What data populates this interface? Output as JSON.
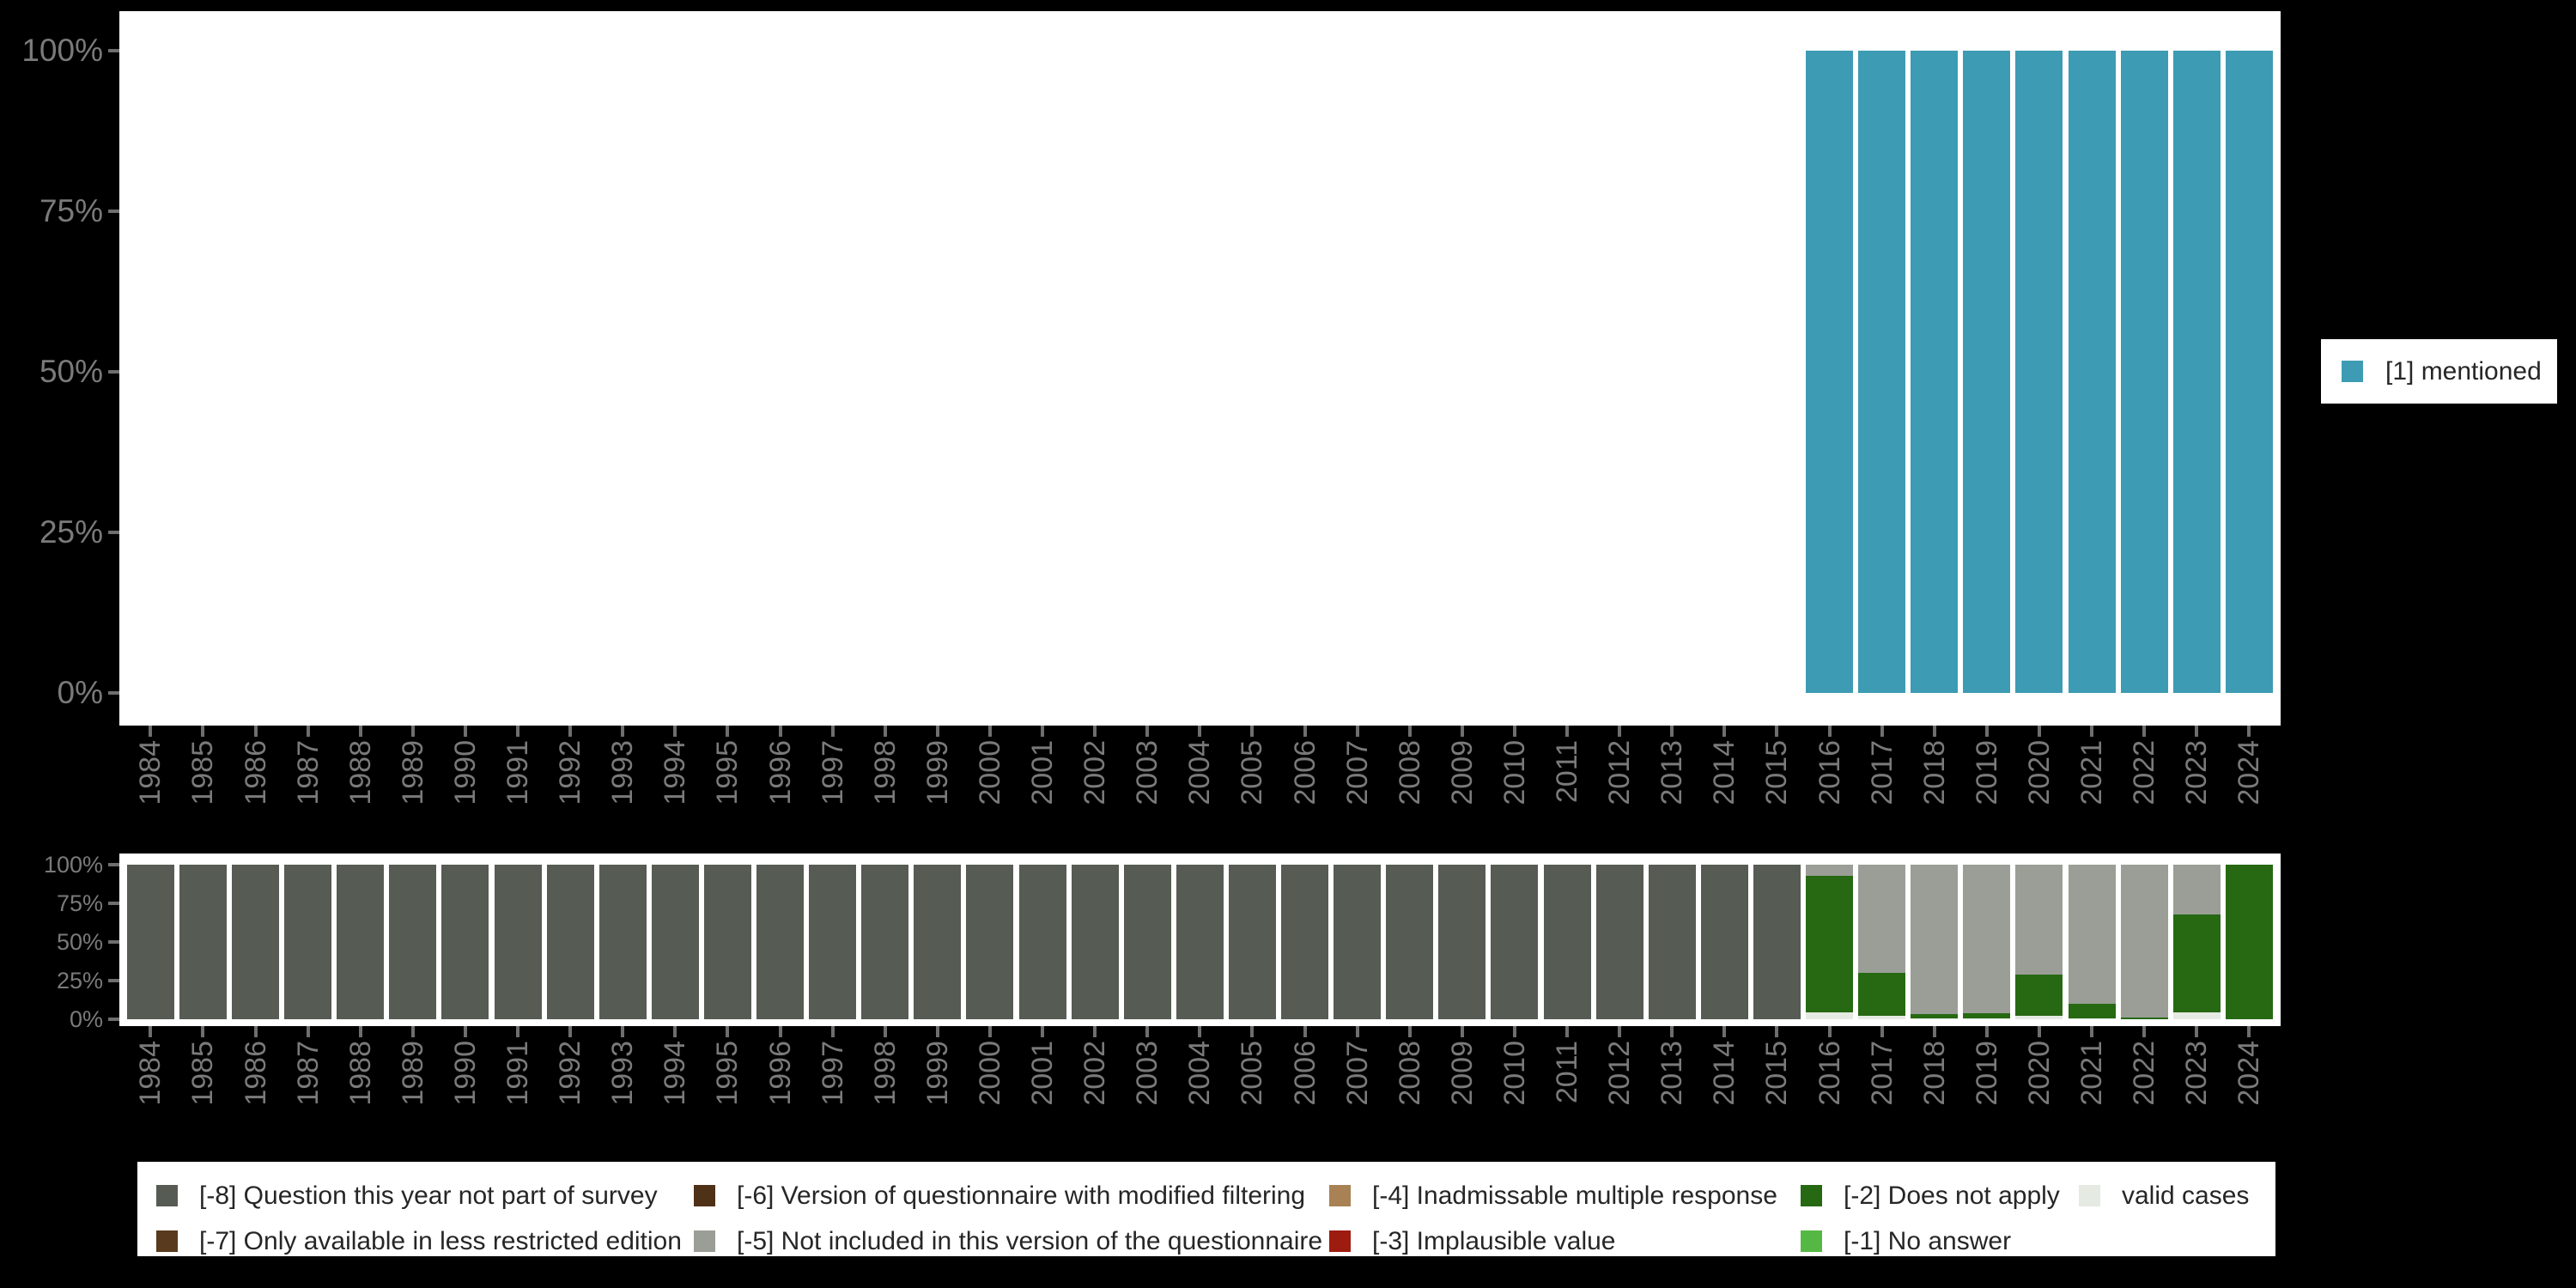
{
  "colors": {
    "background": "#000000",
    "plot_background": "#FFFFFF",
    "axis_text": "#7A7A7A",
    "tick": "#6E6E6E",
    "legend_text": "#262626",
    "mentioned": "#3D9BB3",
    "minus8": "#565B54",
    "minus7": "#5A3A1E",
    "minus6": "#4E3117",
    "minus5": "#9A9E96",
    "minus4": "#A88154",
    "minus3": "#9E1B10",
    "minus2": "#266912",
    "minus1": "#55B845",
    "valid": "#E5EAE3"
  },
  "legend_top": {
    "items": [
      {
        "label": "[1] mentioned",
        "color": "#3D9BB3"
      }
    ]
  },
  "legend_bottom": {
    "rows": [
      [
        {
          "label": "[-8] Question this year not part of survey",
          "color": "#565B54"
        },
        {
          "label": "[-6] Version of questionnaire with modified filtering",
          "color": "#4E3117"
        },
        {
          "label": "[-4] Inadmissable multiple response",
          "color": "#A88154"
        },
        {
          "label": "[-2] Does not apply",
          "color": "#266912"
        },
        {
          "label": "valid cases",
          "color": "#E5EAE3"
        }
      ],
      [
        {
          "label": "[-7] Only available in less restricted edition",
          "color": "#5A3A1E"
        },
        {
          "label": "[-5] Not included in this version of the questionnaire",
          "color": "#9A9E96"
        },
        {
          "label": "[-3] Implausible value",
          "color": "#9E1B10"
        },
        {
          "label": "[-1] No answer",
          "color": "#55B845"
        }
      ]
    ]
  },
  "chart_data": [
    {
      "type": "bar",
      "stacked": true,
      "unit": "percent",
      "title": "",
      "xlabel": "",
      "ylabel": "",
      "ylim": [
        0,
        100
      ],
      "grid": false,
      "legend_position": "right",
      "y_tick_labels": [
        "100%",
        "75%",
        "50%",
        "25%",
        "0%"
      ],
      "categories": [
        "1984",
        "1985",
        "1986",
        "1987",
        "1988",
        "1989",
        "1990",
        "1991",
        "1992",
        "1993",
        "1994",
        "1995",
        "1996",
        "1997",
        "1998",
        "1999",
        "2000",
        "2001",
        "2002",
        "2003",
        "2004",
        "2005",
        "2006",
        "2007",
        "2008",
        "2009",
        "2010",
        "2011",
        "2012",
        "2013",
        "2014",
        "2015",
        "2016",
        "2017",
        "2018",
        "2019",
        "2020",
        "2021",
        "2022",
        "2023",
        "2024"
      ],
      "series": [
        {
          "name": "[1] mentioned",
          "color": "#3D9BB3",
          "values": [
            null,
            null,
            null,
            null,
            null,
            null,
            null,
            null,
            null,
            null,
            null,
            null,
            null,
            null,
            null,
            null,
            null,
            null,
            null,
            null,
            null,
            null,
            null,
            null,
            null,
            null,
            null,
            null,
            null,
            null,
            null,
            null,
            100,
            100,
            100,
            100,
            100,
            100,
            100,
            100,
            100
          ]
        }
      ]
    },
    {
      "type": "bar",
      "stacked": true,
      "unit": "percent",
      "title": "",
      "xlabel": "",
      "ylabel": "",
      "ylim": [
        0,
        100
      ],
      "grid": false,
      "legend_position": "bottom",
      "y_tick_labels": [
        "100%",
        "75%",
        "50%",
        "25%",
        "0%"
      ],
      "categories": [
        "1984",
        "1985",
        "1986",
        "1987",
        "1988",
        "1989",
        "1990",
        "1991",
        "1992",
        "1993",
        "1994",
        "1995",
        "1996",
        "1997",
        "1998",
        "1999",
        "2000",
        "2001",
        "2002",
        "2003",
        "2004",
        "2005",
        "2006",
        "2007",
        "2008",
        "2009",
        "2010",
        "2011",
        "2012",
        "2013",
        "2014",
        "2015",
        "2016",
        "2017",
        "2018",
        "2019",
        "2020",
        "2021",
        "2022",
        "2023",
        "2024"
      ],
      "series": [
        {
          "name": "[-8] Question this year not part of survey",
          "color": "#565B54",
          "values": [
            100,
            100,
            100,
            100,
            100,
            100,
            100,
            100,
            100,
            100,
            100,
            100,
            100,
            100,
            100,
            100,
            100,
            100,
            100,
            100,
            100,
            100,
            100,
            100,
            100,
            100,
            100,
            100,
            100,
            100,
            100,
            100,
            0,
            0,
            0,
            0,
            0,
            0,
            0,
            0,
            0
          ]
        },
        {
          "name": "[-5] Not included in this version of the questionnaire",
          "color": "#9A9E96",
          "values": [
            0,
            0,
            0,
            0,
            0,
            0,
            0,
            0,
            0,
            0,
            0,
            0,
            0,
            0,
            0,
            0,
            0,
            0,
            0,
            0,
            0,
            0,
            0,
            0,
            0,
            0,
            0,
            0,
            0,
            0,
            0,
            0,
            7,
            70,
            96.5,
            96,
            71,
            90,
            99,
            32,
            0
          ]
        },
        {
          "name": "[-2] Does not apply",
          "color": "#266912",
          "values": [
            0,
            0,
            0,
            0,
            0,
            0,
            0,
            0,
            0,
            0,
            0,
            0,
            0,
            0,
            0,
            0,
            0,
            0,
            0,
            0,
            0,
            0,
            0,
            0,
            0,
            0,
            0,
            0,
            0,
            0,
            0,
            0,
            88.5,
            28,
            3,
            3.5,
            27,
            9.5,
            1,
            63.5,
            100
          ]
        },
        {
          "name": "valid cases",
          "color": "#E5EAE3",
          "values": [
            0,
            0,
            0,
            0,
            0,
            0,
            0,
            0,
            0,
            0,
            0,
            0,
            0,
            0,
            0,
            0,
            0,
            0,
            0,
            0,
            0,
            0,
            0,
            0,
            0,
            0,
            0,
            0,
            0,
            0,
            0,
            0,
            4.5,
            2,
            0.5,
            0.5,
            2,
            0.5,
            0,
            4.5,
            0
          ]
        }
      ]
    }
  ]
}
